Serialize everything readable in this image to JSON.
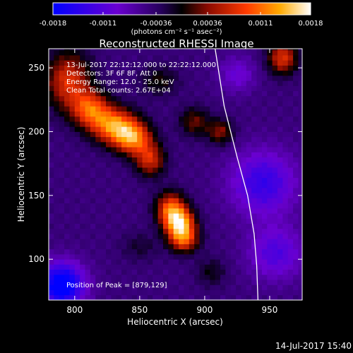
{
  "chart_data": {
    "type": "heatmap",
    "title": "Reconstructed RHESSI Image",
    "xlabel": "Heliocentric X (arcsec)",
    "ylabel": "Heliocentric Y (arcsec)",
    "xlim": [
      780,
      975
    ],
    "ylim": [
      68,
      265
    ],
    "xticks": [
      800,
      850,
      900,
      950
    ],
    "yticks": [
      100,
      150,
      200,
      250
    ],
    "colorbar": {
      "range": [
        -0.0018,
        0.0018
      ],
      "tick_values": [
        -0.0018,
        -0.0011,
        -0.00036,
        0.00036,
        0.0011,
        0.0018
      ],
      "tick_labels": [
        "-0.0018",
        "-0.0011",
        "-0.00036",
        "0.00036",
        "0.0011",
        "0.0018"
      ],
      "unit_label": "(photons cm⁻² s⁻¹ asec⁻²)"
    },
    "annotations": [
      "13-Jul-2017 22:12:12.000 to 22:22:12.000",
      "Detectors: 3F 6F 8F, Att 0",
      "Energy Range: 12.0 - 25.0 keV",
      "Clean    Total counts: 2.67E+04"
    ],
    "peak_label": "Position of Peak = [879,129]",
    "peak": [
      879,
      129
    ],
    "limb_curve": [
      [
        908,
        265
      ],
      [
        915,
        220
      ],
      [
        925,
        180
      ],
      [
        933,
        150
      ],
      [
        938,
        120
      ],
      [
        940,
        95
      ],
      [
        941,
        68
      ]
    ],
    "sources": [
      {
        "x": 795,
        "y": 240,
        "sx": 12,
        "sy": 16,
        "amp": 0.0012
      },
      {
        "x": 812,
        "y": 218,
        "sx": 10,
        "sy": 10,
        "amp": 0.0013
      },
      {
        "x": 830,
        "y": 205,
        "sx": 12,
        "sy": 10,
        "amp": 0.0016
      },
      {
        "x": 845,
        "y": 195,
        "sx": 10,
        "sy": 9,
        "amp": 0.0015
      },
      {
        "x": 858,
        "y": 178,
        "sx": 8,
        "sy": 9,
        "amp": 0.0011
      },
      {
        "x": 874,
        "y": 140,
        "sx": 8,
        "sy": 9,
        "amp": 0.0014
      },
      {
        "x": 881,
        "y": 128,
        "sx": 8,
        "sy": 8,
        "amp": 0.0018
      },
      {
        "x": 884,
        "y": 115,
        "sx": 8,
        "sy": 7,
        "amp": 0.0012
      },
      {
        "x": 892,
        "y": 208,
        "sx": 8,
        "sy": 8,
        "amp": 0.0007
      },
      {
        "x": 912,
        "y": 200,
        "sx": 7,
        "sy": 7,
        "amp": 0.0008
      },
      {
        "x": 960,
        "y": 258,
        "sx": 8,
        "sy": 9,
        "amp": 0.0012
      },
      {
        "x": 865,
        "y": 240,
        "sx": 10,
        "sy": 8,
        "amp": 0.0005
      },
      {
        "x": 850,
        "y": 110,
        "sx": 10,
        "sy": 8,
        "amp": 0.0003
      },
      {
        "x": 905,
        "y": 90,
        "sx": 8,
        "sy": 8,
        "amp": 0.0004
      },
      {
        "x": 790,
        "y": 80,
        "sx": 12,
        "sy": 12,
        "amp": -0.0016
      },
      {
        "x": 945,
        "y": 160,
        "sx": 18,
        "sy": 18,
        "amp": -0.0009
      },
      {
        "x": 955,
        "y": 105,
        "sx": 15,
        "sy": 15,
        "amp": -0.0007
      },
      {
        "x": 925,
        "y": 245,
        "sx": 10,
        "sy": 10,
        "amp": -0.0005
      }
    ]
  },
  "footer": {
    "timestamp": "14-Jul-2017 15:40"
  }
}
